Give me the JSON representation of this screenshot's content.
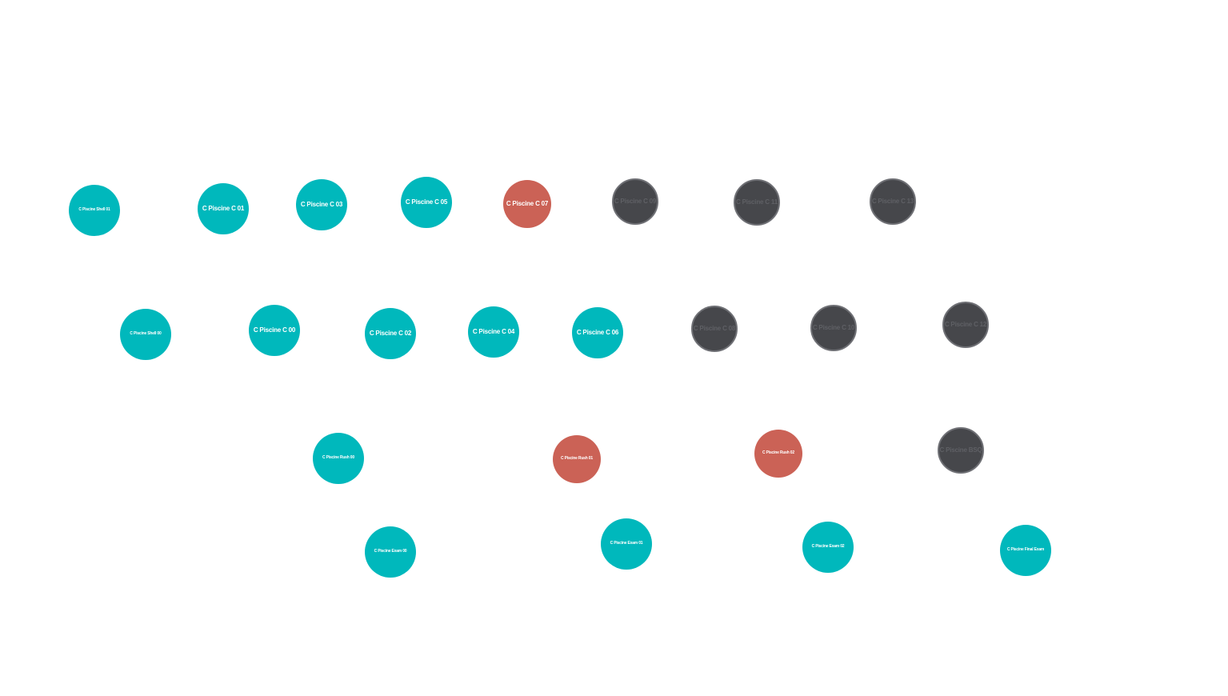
{
  "colors": {
    "available": "#00b8bc",
    "in_progress": "#cb6256",
    "locked": "#46474b",
    "locked_text": "#5f6065",
    "background": "#ffffff"
  },
  "nodes": {
    "shell01": {
      "label": "C Piscine Shell 01",
      "state": "available"
    },
    "c01": {
      "label": "C Piscine C 01",
      "state": "available"
    },
    "c03": {
      "label": "C Piscine C 03",
      "state": "available"
    },
    "c05": {
      "label": "C Piscine C 05",
      "state": "available"
    },
    "c07": {
      "label": "C Piscine C 07",
      "state": "in_progress"
    },
    "c09": {
      "label": "C Piscine C 09",
      "state": "locked"
    },
    "c11": {
      "label": "C Piscine C 11",
      "state": "locked"
    },
    "c13": {
      "label": "C Piscine C 13",
      "state": "locked"
    },
    "shell00": {
      "label": "C Piscine Shell 00",
      "state": "available"
    },
    "c00": {
      "label": "C Piscine C 00",
      "state": "available"
    },
    "c02": {
      "label": "C Piscine C 02",
      "state": "available"
    },
    "c04": {
      "label": "C Piscine C 04",
      "state": "available"
    },
    "c06": {
      "label": "C Piscine C 06",
      "state": "available"
    },
    "c08": {
      "label": "C Piscine C 08",
      "state": "locked"
    },
    "c10": {
      "label": "C Piscine C 10",
      "state": "locked"
    },
    "c12": {
      "label": "C Piscine C 12",
      "state": "locked"
    },
    "rush00": {
      "label": "C Piscine Rush 00",
      "state": "available"
    },
    "rush01": {
      "label": "C Piscine Rush 01",
      "state": "in_progress"
    },
    "rush02": {
      "label": "C Piscine Rush 02",
      "state": "in_progress"
    },
    "bsq": {
      "label": "C Piscine BSQ",
      "state": "locked"
    },
    "exam00": {
      "label": "C Piscine Exam 00",
      "state": "available"
    },
    "exam01": {
      "label": "C Piscine Exam 01",
      "state": "available"
    },
    "exam02": {
      "label": "C Piscine Exam 02",
      "state": "available"
    },
    "final_exam": {
      "label": "C Piscine Final Exam",
      "state": "available"
    }
  }
}
